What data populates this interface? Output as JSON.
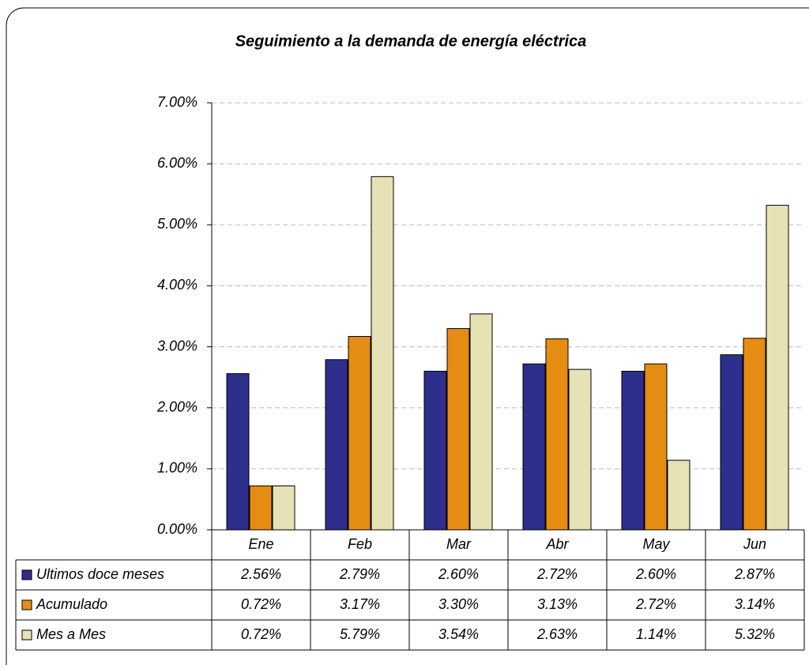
{
  "chart_data": {
    "type": "bar",
    "title": "Seguimiento a la demanda de energía eléctrica",
    "categories": [
      "Ene",
      "Feb",
      "Mar",
      "Abr",
      "May",
      "Jun"
    ],
    "series": [
      {
        "name": "Ultimos doce meses",
        "color": "#2e2e8c",
        "values": [
          2.56,
          2.79,
          2.6,
          2.72,
          2.6,
          2.87
        ],
        "value_labels": [
          "2.56%",
          "2.79%",
          "2.60%",
          "2.72%",
          "2.60%",
          "2.87%"
        ]
      },
      {
        "name": "Acumulado",
        "color": "#e58c12",
        "values": [
          0.72,
          3.17,
          3.3,
          3.13,
          2.72,
          3.14
        ],
        "value_labels": [
          "0.72%",
          "3.17%",
          "3.30%",
          "3.13%",
          "2.72%",
          "3.14%"
        ]
      },
      {
        "name": "Mes a Mes",
        "color": "#e6e2b6",
        "values": [
          0.72,
          5.79,
          3.54,
          2.63,
          1.14,
          5.32
        ],
        "value_labels": [
          "0.72%",
          "5.79%",
          "3.54%",
          "2.63%",
          "1.14%",
          "5.32%"
        ]
      }
    ],
    "ylim": [
      0,
      7
    ],
    "yticks": [
      {
        "value": 0,
        "label": "0.00%"
      },
      {
        "value": 1,
        "label": "1.00%"
      },
      {
        "value": 2,
        "label": "2.00%"
      },
      {
        "value": 3,
        "label": "3.00%"
      },
      {
        "value": 4,
        "label": "4.00%"
      },
      {
        "value": 5,
        "label": "5.00%"
      },
      {
        "value": 6,
        "label": "6.00%"
      },
      {
        "value": 7,
        "label": "7.00%"
      }
    ],
    "grid": true
  }
}
